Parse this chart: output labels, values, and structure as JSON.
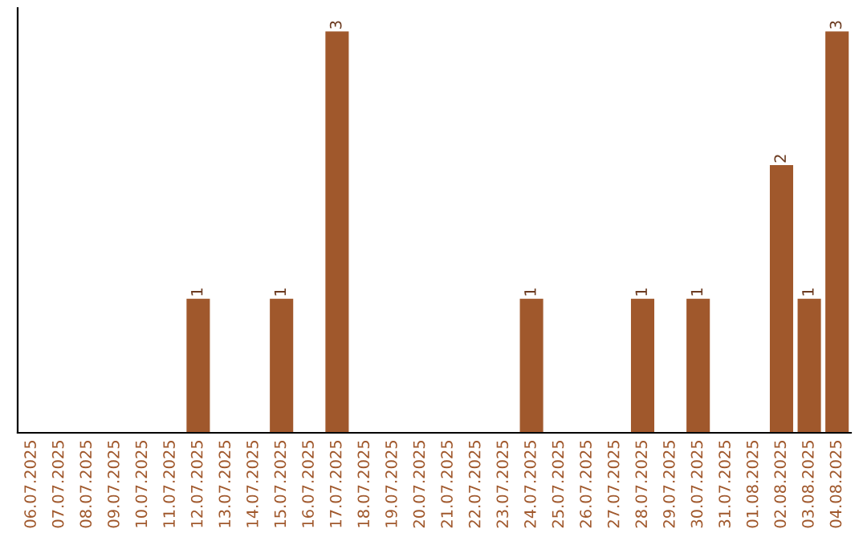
{
  "chart_data": {
    "type": "bar",
    "categories": [
      "06.07.2025",
      "07.07.2025",
      "08.07.2025",
      "09.07.2025",
      "10.07.2025",
      "11.07.2025",
      "12.07.2025",
      "13.07.2025",
      "14.07.2025",
      "15.07.2025",
      "16.07.2025",
      "17.07.2025",
      "18.07.2025",
      "19.07.2025",
      "20.07.2025",
      "21.07.2025",
      "22.07.2025",
      "23.07.2025",
      "24.07.2025",
      "25.07.2025",
      "26.07.2025",
      "27.07.2025",
      "28.07.2025",
      "29.07.2025",
      "30.07.2025",
      "31.07.2025",
      "01.08.2025",
      "02.08.2025",
      "03.08.2025",
      "04.08.2025"
    ],
    "values": [
      0,
      0,
      0,
      0,
      0,
      0,
      1,
      0,
      0,
      1,
      0,
      3,
      0,
      0,
      0,
      0,
      0,
      0,
      1,
      0,
      0,
      0,
      1,
      0,
      1,
      0,
      0,
      2,
      1,
      3
    ],
    "value_labels": [
      null,
      null,
      null,
      null,
      null,
      null,
      "1",
      null,
      null,
      "1",
      null,
      "3",
      null,
      null,
      null,
      null,
      null,
      null,
      "1",
      null,
      null,
      null,
      "1",
      null,
      "1",
      null,
      null,
      "2",
      "1",
      "3"
    ],
    "color": "#a0582c",
    "grid": false,
    "legend": false
  }
}
